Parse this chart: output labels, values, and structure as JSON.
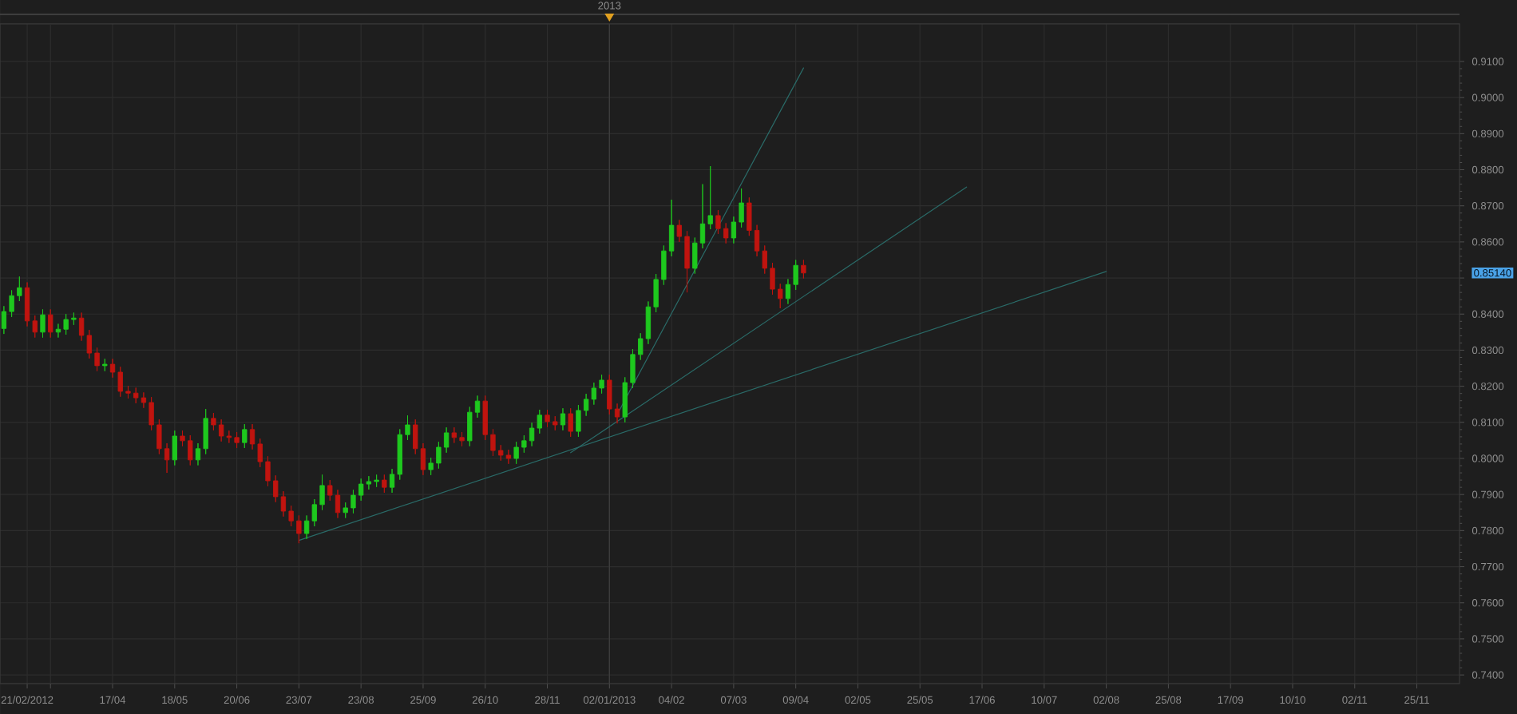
{
  "chart_data": {
    "type": "candlestick",
    "categories": [
      null,
      null,
      null,
      "21/02/2012",
      null,
      null,
      null,
      null,
      null,
      null,
      null,
      null,
      null,
      null,
      "17/04",
      null,
      null,
      null,
      null,
      null,
      null,
      null,
      "18/05",
      null,
      null,
      null,
      null,
      null,
      null,
      null,
      "20/06",
      null,
      null,
      null,
      null,
      null,
      null,
      null,
      "23/07",
      null,
      null,
      null,
      null,
      null,
      null,
      null,
      "23/08",
      null,
      null,
      null,
      null,
      null,
      null,
      null,
      "25/09",
      null,
      null,
      null,
      null,
      null,
      null,
      null,
      "26/10",
      null,
      null,
      null,
      null,
      null,
      null,
      null,
      "28/11",
      null,
      null,
      null,
      null,
      null,
      null,
      null,
      "02/01/2013",
      null,
      null,
      null,
      null,
      null,
      null,
      null,
      "04/02",
      null,
      null,
      null,
      null,
      null,
      null,
      null,
      "07/03",
      null,
      null,
      null,
      null,
      null,
      null,
      null,
      "09/04",
      null,
      null,
      null,
      null,
      null,
      null,
      null,
      "02/05",
      null,
      null,
      null,
      null,
      null,
      null,
      null,
      "25/05",
      null,
      null,
      null,
      null,
      null,
      null,
      null,
      "17/06",
      null,
      null,
      null,
      null,
      null,
      null,
      null,
      "10/07",
      null,
      null,
      null,
      null,
      null,
      null,
      null,
      "02/08",
      null,
      null,
      null,
      null,
      null,
      null,
      null,
      "25/08",
      null,
      null,
      null,
      null,
      null,
      null,
      null,
      "17/09",
      null,
      null,
      null,
      null,
      null,
      null,
      null,
      "10/10",
      null,
      null,
      null,
      null,
      null,
      null,
      null,
      "02/11",
      null,
      null,
      null,
      null,
      null,
      null,
      null,
      "25/11",
      null,
      null,
      null,
      null,
      null
    ],
    "ohlc": [
      [
        0.836,
        0.8422,
        0.8345,
        0.8407
      ],
      [
        0.8407,
        0.8466,
        0.8392,
        0.8451
      ],
      [
        0.8451,
        0.8504,
        0.8436,
        0.8473
      ],
      [
        0.8473,
        0.8488,
        0.8366,
        0.8381
      ],
      [
        0.8381,
        0.8396,
        0.8335,
        0.835
      ],
      [
        0.835,
        0.8413,
        0.8335,
        0.8398
      ],
      [
        0.8398,
        0.8413,
        0.8335,
        0.835
      ],
      [
        0.835,
        0.8373,
        0.8335,
        0.8358
      ],
      [
        0.8358,
        0.84,
        0.8343,
        0.8385
      ],
      [
        0.8385,
        0.8404,
        0.837,
        0.8389
      ],
      [
        0.8389,
        0.8404,
        0.8326,
        0.8341
      ],
      [
        0.8341,
        0.8356,
        0.8277,
        0.8292
      ],
      [
        0.8292,
        0.8307,
        0.8242,
        0.8257
      ],
      [
        0.8257,
        0.8276,
        0.8242,
        0.8261
      ],
      [
        0.8261,
        0.8276,
        0.8224,
        0.8239
      ],
      [
        0.8239,
        0.8254,
        0.8171,
        0.8186
      ],
      [
        0.8186,
        0.8201,
        0.8166,
        0.8181
      ],
      [
        0.8181,
        0.8196,
        0.8153,
        0.8168
      ],
      [
        0.8168,
        0.8183,
        0.814,
        0.8155
      ],
      [
        0.8155,
        0.817,
        0.8078,
        0.8093
      ],
      [
        0.8093,
        0.8108,
        0.8012,
        0.8027
      ],
      [
        0.8027,
        0.8042,
        0.796,
        0.7996
      ],
      [
        0.7996,
        0.8077,
        0.7981,
        0.8062
      ],
      [
        0.8062,
        0.8077,
        0.8034,
        0.8049
      ],
      [
        0.8049,
        0.8064,
        0.7981,
        0.7996
      ],
      [
        0.7996,
        0.8042,
        0.7981,
        0.8027
      ],
      [
        0.8027,
        0.8137,
        0.8012,
        0.8111
      ],
      [
        0.8111,
        0.8126,
        0.8078,
        0.8093
      ],
      [
        0.8093,
        0.8108,
        0.8047,
        0.8062
      ],
      [
        0.8062,
        0.8077,
        0.8043,
        0.8058
      ],
      [
        0.8058,
        0.8073,
        0.8029,
        0.8044
      ],
      [
        0.8044,
        0.8095,
        0.8029,
        0.808
      ],
      [
        0.808,
        0.8095,
        0.8025,
        0.804
      ],
      [
        0.804,
        0.8055,
        0.7976,
        0.7991
      ],
      [
        0.7991,
        0.8006,
        0.7923,
        0.7938
      ],
      [
        0.7938,
        0.7953,
        0.7879,
        0.7894
      ],
      [
        0.7894,
        0.7909,
        0.7839,
        0.7854
      ],
      [
        0.7854,
        0.7869,
        0.7812,
        0.7827
      ],
      [
        0.7827,
        0.7842,
        0.7765,
        0.7792
      ],
      [
        0.7792,
        0.7842,
        0.7777,
        0.7827
      ],
      [
        0.7827,
        0.7887,
        0.7812,
        0.7872
      ],
      [
        0.7872,
        0.7955,
        0.7857,
        0.7925
      ],
      [
        0.7925,
        0.794,
        0.7883,
        0.7898
      ],
      [
        0.7898,
        0.7913,
        0.7835,
        0.785
      ],
      [
        0.785,
        0.7878,
        0.7835,
        0.7863
      ],
      [
        0.7863,
        0.7913,
        0.7848,
        0.7898
      ],
      [
        0.7898,
        0.7944,
        0.7883,
        0.7929
      ],
      [
        0.7929,
        0.7951,
        0.7914,
        0.7936
      ],
      [
        0.7936,
        0.7955,
        0.7921,
        0.794
      ],
      [
        0.794,
        0.7955,
        0.7905,
        0.792
      ],
      [
        0.792,
        0.7971,
        0.7905,
        0.7956
      ],
      [
        0.7956,
        0.8081,
        0.7941,
        0.8066
      ],
      [
        0.8066,
        0.8119,
        0.8051,
        0.8093
      ],
      [
        0.8093,
        0.8108,
        0.8012,
        0.8027
      ],
      [
        0.8027,
        0.8042,
        0.7954,
        0.7969
      ],
      [
        0.7969,
        0.8002,
        0.7954,
        0.7987
      ],
      [
        0.7987,
        0.8046,
        0.7972,
        0.8031
      ],
      [
        0.8031,
        0.8086,
        0.8016,
        0.8071
      ],
      [
        0.8071,
        0.8086,
        0.8043,
        0.8058
      ],
      [
        0.8058,
        0.8073,
        0.8034,
        0.8049
      ],
      [
        0.8049,
        0.8143,
        0.8034,
        0.8128
      ],
      [
        0.8128,
        0.8174,
        0.8113,
        0.8159
      ],
      [
        0.8159,
        0.8174,
        0.8051,
        0.8066
      ],
      [
        0.8066,
        0.8081,
        0.8007,
        0.8022
      ],
      [
        0.8022,
        0.8037,
        0.7994,
        0.8009
      ],
      [
        0.8009,
        0.8024,
        0.7985,
        0.8
      ],
      [
        0.8,
        0.8046,
        0.7985,
        0.8031
      ],
      [
        0.8031,
        0.8064,
        0.8016,
        0.8049
      ],
      [
        0.8049,
        0.8099,
        0.8034,
        0.8084
      ],
      [
        0.8084,
        0.8135,
        0.8069,
        0.812
      ],
      [
        0.812,
        0.8135,
        0.8087,
        0.8102
      ],
      [
        0.8102,
        0.8117,
        0.8078,
        0.8093
      ],
      [
        0.8093,
        0.8139,
        0.8078,
        0.8124
      ],
      [
        0.8124,
        0.8139,
        0.806,
        0.8075
      ],
      [
        0.8075,
        0.8148,
        0.806,
        0.8133
      ],
      [
        0.8133,
        0.8179,
        0.8118,
        0.8164
      ],
      [
        0.8164,
        0.821,
        0.8149,
        0.8195
      ],
      [
        0.8195,
        0.8232,
        0.818,
        0.8217
      ],
      [
        0.8217,
        0.8232,
        0.8122,
        0.8137
      ],
      [
        0.8137,
        0.8152,
        0.8097,
        0.8115
      ],
      [
        0.8115,
        0.8225,
        0.81,
        0.821
      ],
      [
        0.821,
        0.8303,
        0.8195,
        0.8288
      ],
      [
        0.8288,
        0.8347,
        0.8273,
        0.8332
      ],
      [
        0.8332,
        0.8435,
        0.8317,
        0.842
      ],
      [
        0.842,
        0.8511,
        0.8405,
        0.8496
      ],
      [
        0.8496,
        0.859,
        0.8481,
        0.8575
      ],
      [
        0.8575,
        0.8717,
        0.856,
        0.8646
      ],
      [
        0.8646,
        0.8661,
        0.86,
        0.8615
      ],
      [
        0.8615,
        0.863,
        0.846,
        0.8527
      ],
      [
        0.8527,
        0.8612,
        0.8512,
        0.8597
      ],
      [
        0.8597,
        0.876,
        0.8582,
        0.865
      ],
      [
        0.865,
        0.881,
        0.8635,
        0.8673
      ],
      [
        0.8673,
        0.8688,
        0.8622,
        0.8637
      ],
      [
        0.8637,
        0.8652,
        0.8596,
        0.8611
      ],
      [
        0.8611,
        0.867,
        0.8596,
        0.8655
      ],
      [
        0.8655,
        0.8748,
        0.864,
        0.8708
      ],
      [
        0.8708,
        0.8723,
        0.8617,
        0.8632
      ],
      [
        0.8632,
        0.8647,
        0.856,
        0.8575
      ],
      [
        0.8575,
        0.859,
        0.8512,
        0.8527
      ],
      [
        0.8527,
        0.8542,
        0.8454,
        0.8469
      ],
      [
        0.8469,
        0.8484,
        0.8416,
        0.8443
      ],
      [
        0.8443,
        0.8497,
        0.8428,
        0.8482
      ],
      [
        0.8482,
        0.855,
        0.8467,
        0.8535
      ],
      [
        0.8535,
        0.855,
        0.8499,
        0.8514
      ],
      null,
      null,
      null,
      null,
      null,
      null,
      null,
      null,
      null,
      null,
      null,
      null,
      null,
      null,
      null,
      null,
      null,
      null,
      null,
      null,
      null,
      null,
      null,
      null,
      null,
      null,
      null,
      null,
      null,
      null,
      null,
      null,
      null,
      null,
      null,
      null,
      null,
      null,
      null,
      null,
      null,
      null,
      null,
      null,
      null,
      null,
      null,
      null,
      null,
      null,
      null,
      null,
      null,
      null,
      null,
      null,
      null,
      null,
      null,
      null,
      null,
      null,
      null,
      null,
      null,
      null,
      null,
      null,
      null,
      null,
      null,
      null,
      null,
      null,
      null,
      null,
      null,
      null,
      null,
      null,
      null,
      null,
      null,
      null
    ],
    "colors": [
      "#1ec81e",
      "#1ec81e",
      "#1ec81e",
      "#c0140f",
      "#c0140f",
      "#1ec81e",
      "#c0140f",
      "#1ec81e",
      "#1ec81e",
      "#1ec81e",
      "#c0140f",
      "#c0140f",
      "#c0140f",
      "#1ec81e",
      "#c0140f",
      "#c0140f",
      "#c0140f",
      "#c0140f",
      "#c0140f",
      "#c0140f",
      "#c0140f",
      "#c0140f",
      "#1ec81e",
      "#c0140f",
      "#c0140f",
      "#1ec81e",
      "#1ec81e",
      "#c0140f",
      "#c0140f",
      "#c0140f",
      "#c0140f",
      "#1ec81e",
      "#c0140f",
      "#c0140f",
      "#c0140f",
      "#c0140f",
      "#c0140f",
      "#c0140f",
      "#c0140f",
      "#1ec81e",
      "#1ec81e",
      "#1ec81e",
      "#c0140f",
      "#c0140f",
      "#1ec81e",
      "#1ec81e",
      "#1ec81e",
      "#1ec81e",
      "#1ec81e",
      "#c0140f",
      "#1ec81e",
      "#1ec81e",
      "#1ec81e",
      "#c0140f",
      "#c0140f",
      "#1ec81e",
      "#1ec81e",
      "#1ec81e",
      "#c0140f",
      "#c0140f",
      "#1ec81e",
      "#1ec81e",
      "#c0140f",
      "#c0140f",
      "#c0140f",
      "#c0140f",
      "#1ec81e",
      "#1ec81e",
      "#1ec81e",
      "#1ec81e",
      "#c0140f",
      "#c0140f",
      "#1ec81e",
      "#c0140f",
      "#1ec81e",
      "#1ec81e",
      "#1ec81e",
      "#1ec81e",
      "#c0140f",
      "#c0140f",
      "#1ec81e",
      "#1ec81e",
      "#1ec81e",
      "#1ec81e",
      "#1ec81e",
      "#1ec81e",
      "#1ec81e",
      "#c0140f",
      "#c0140f",
      "#1ec81e",
      "#1ec81e",
      "#1ec81e",
      "#c0140f",
      "#c0140f",
      "#1ec81e",
      "#1ec81e",
      "#c0140f",
      "#c0140f",
      "#c0140f",
      "#c0140f",
      "#c0140f",
      "#1ec81e",
      "#1ec81e",
      "#c0140f",
      null,
      null,
      null,
      null,
      null,
      null,
      null,
      null,
      null,
      null,
      null,
      null,
      null,
      null,
      null,
      null,
      null,
      null,
      null,
      null,
      null,
      null,
      null,
      null,
      null,
      null,
      null,
      null,
      null,
      null,
      null,
      null,
      null,
      null,
      null,
      null,
      null,
      null,
      null,
      null,
      null,
      null,
      null,
      null,
      null,
      null,
      null,
      null,
      null,
      null,
      null,
      null,
      null,
      null,
      null,
      null,
      null,
      null,
      null,
      null,
      null,
      null,
      null,
      null,
      null,
      null,
      null,
      null,
      null,
      null,
      null,
      null,
      null,
      null,
      null,
      null,
      null,
      null,
      null,
      null,
      null,
      null,
      null,
      null
    ],
    "series": [
      {
        "type": "line",
        "color": "#2a6b68",
        "values": [
          null,
          null,
          null,
          null,
          null,
          null,
          null,
          null,
          null,
          null,
          null,
          null,
          null,
          null,
          null,
          null,
          null,
          null,
          null,
          null,
          null,
          null,
          null,
          null,
          null,
          null,
          null,
          null,
          null,
          null,
          null,
          null,
          null,
          null,
          null,
          null,
          null,
          null,
          0.7773,
          null,
          null,
          null,
          null,
          null,
          null,
          null,
          null,
          null,
          null,
          null,
          null,
          null,
          null,
          null,
          null,
          null,
          null,
          null,
          null,
          null,
          null,
          null,
          null,
          null,
          null,
          null,
          null,
          null,
          null,
          null,
          null,
          null,
          null,
          null,
          null,
          null,
          null,
          null,
          null,
          null,
          null,
          null,
          null,
          null,
          null,
          null,
          null,
          null,
          null,
          null,
          null,
          null,
          null,
          null,
          null,
          null,
          null,
          null,
          null,
          null,
          null,
          null,
          null,
          null,
          null,
          null,
          null,
          null,
          null,
          null,
          null,
          null,
          null,
          null,
          null,
          null,
          null,
          null,
          null,
          null,
          null,
          null,
          null,
          null,
          null,
          null,
          null,
          null,
          null,
          null,
          null,
          null,
          null,
          null,
          null,
          null,
          null,
          null,
          null,
          null,
          null,
          null,
          0.8518,
          null,
          null,
          null,
          null,
          null,
          null,
          null,
          null,
          null,
          null,
          null,
          null,
          null,
          null,
          null,
          null,
          null,
          null,
          null,
          null,
          null,
          null,
          null,
          null,
          null,
          null,
          null,
          null,
          null,
          null,
          null,
          null,
          null,
          null,
          null,
          null,
          null,
          null,
          null,
          null,
          null,
          null,
          null,
          null,
          null
        ]
      },
      {
        "type": "line",
        "color": "#2a6b68",
        "values": [
          null,
          null,
          null,
          null,
          null,
          null,
          null,
          null,
          null,
          null,
          null,
          null,
          null,
          null,
          null,
          null,
          null,
          null,
          null,
          null,
          null,
          null,
          null,
          null,
          null,
          null,
          null,
          null,
          null,
          null,
          null,
          null,
          null,
          null,
          null,
          null,
          null,
          null,
          null,
          null,
          null,
          null,
          null,
          null,
          null,
          null,
          null,
          null,
          null,
          null,
          null,
          null,
          null,
          null,
          null,
          null,
          null,
          null,
          null,
          null,
          null,
          null,
          null,
          null,
          null,
          null,
          null,
          null,
          null,
          null,
          null,
          null,
          null,
          0.8016,
          null,
          null,
          null,
          null,
          null,
          null,
          null,
          null,
          null,
          null,
          null,
          null,
          null,
          null,
          null,
          null,
          null,
          null,
          null,
          null,
          null,
          null,
          null,
          null,
          null,
          null,
          null,
          null,
          null,
          null,
          null,
          null,
          null,
          null,
          null,
          null,
          null,
          null,
          null,
          null,
          null,
          null,
          null,
          null,
          null,
          null,
          null,
          null,
          null,
          null,
          0.8752,
          null,
          null,
          null,
          null,
          null,
          null,
          null,
          null,
          null,
          null,
          null,
          null,
          null,
          null,
          null,
          null,
          null,
          null,
          null,
          null,
          null,
          null,
          null,
          null,
          null,
          null,
          null,
          null,
          null,
          null,
          null,
          null,
          null,
          null,
          null,
          null,
          null,
          null,
          null,
          null,
          null,
          null,
          null,
          null,
          null,
          null,
          null,
          null,
          null,
          null,
          null,
          null,
          null,
          null,
          null,
          null,
          null,
          null,
          null,
          null,
          null,
          null,
          null
        ]
      },
      {
        "type": "line",
        "color": "#2a6b68",
        "values": [
          null,
          null,
          null,
          null,
          null,
          null,
          null,
          null,
          null,
          null,
          null,
          null,
          null,
          null,
          null,
          null,
          null,
          null,
          null,
          null,
          null,
          null,
          null,
          null,
          null,
          null,
          null,
          null,
          null,
          null,
          null,
          null,
          null,
          null,
          null,
          null,
          null,
          null,
          null,
          null,
          null,
          null,
          null,
          null,
          null,
          null,
          null,
          null,
          null,
          null,
          null,
          null,
          null,
          null,
          null,
          null,
          null,
          null,
          null,
          null,
          null,
          null,
          null,
          null,
          null,
          null,
          null,
          null,
          null,
          null,
          null,
          null,
          null,
          null,
          null,
          null,
          null,
          null,
          null,
          0.8122,
          null,
          null,
          null,
          null,
          null,
          null,
          null,
          null,
          null,
          null,
          null,
          null,
          null,
          null,
          null,
          null,
          null,
          null,
          null,
          null,
          null,
          null,
          null,
          0.9082,
          null,
          null,
          null,
          null,
          null,
          null,
          null,
          null,
          null,
          null,
          null,
          null,
          null,
          null,
          null,
          null,
          null,
          null,
          null,
          null,
          null,
          null,
          null,
          null,
          null,
          null,
          null,
          null,
          null,
          null,
          null,
          null,
          null,
          null,
          null,
          null,
          null,
          null,
          null,
          null,
          null,
          null,
          null,
          null,
          null,
          null,
          null,
          null,
          null,
          null,
          null,
          null,
          null,
          null,
          null,
          null,
          null,
          null,
          null,
          null,
          null,
          null,
          null,
          null,
          null,
          null,
          null,
          null,
          null,
          null,
          null,
          null,
          null,
          null,
          null,
          null,
          null,
          null,
          null,
          null,
          null,
          null,
          null,
          null
        ]
      }
    ],
    "ylim": [
      0.7376,
      0.9204
    ],
    "yticks": [
      {
        "value": 0.74,
        "label": "0.7400"
      },
      {
        "value": 0.75,
        "label": "0.7500"
      },
      {
        "value": 0.76,
        "label": "0.7600"
      },
      {
        "value": 0.77,
        "label": "0.7700"
      },
      {
        "value": 0.78,
        "label": "0.7800"
      },
      {
        "value": 0.79,
        "label": "0.7900"
      },
      {
        "value": 0.8,
        "label": "0.8000"
      },
      {
        "value": 0.81,
        "label": "0.8100"
      },
      {
        "value": 0.82,
        "label": "0.8200"
      },
      {
        "value": 0.83,
        "label": "0.8300"
      },
      {
        "value": 0.84,
        "label": "0.8400"
      },
      {
        "value": 0.85,
        "label": null
      },
      {
        "value": 0.86,
        "label": "0.8600"
      },
      {
        "value": 0.87,
        "label": "0.8700"
      },
      {
        "value": 0.88,
        "label": "0.8800"
      },
      {
        "value": 0.89,
        "label": "0.8900"
      },
      {
        "value": 0.9,
        "label": "0.9000"
      },
      {
        "value": 0.91,
        "label": "0.9100"
      }
    ],
    "ref_lines": [
      {
        "axis": "x",
        "value": "02/01/2013",
        "label": "2013",
        "color": "#3c3c3c"
      }
    ],
    "annotations": [
      "0.85140"
    ],
    "grid": true
  }
}
